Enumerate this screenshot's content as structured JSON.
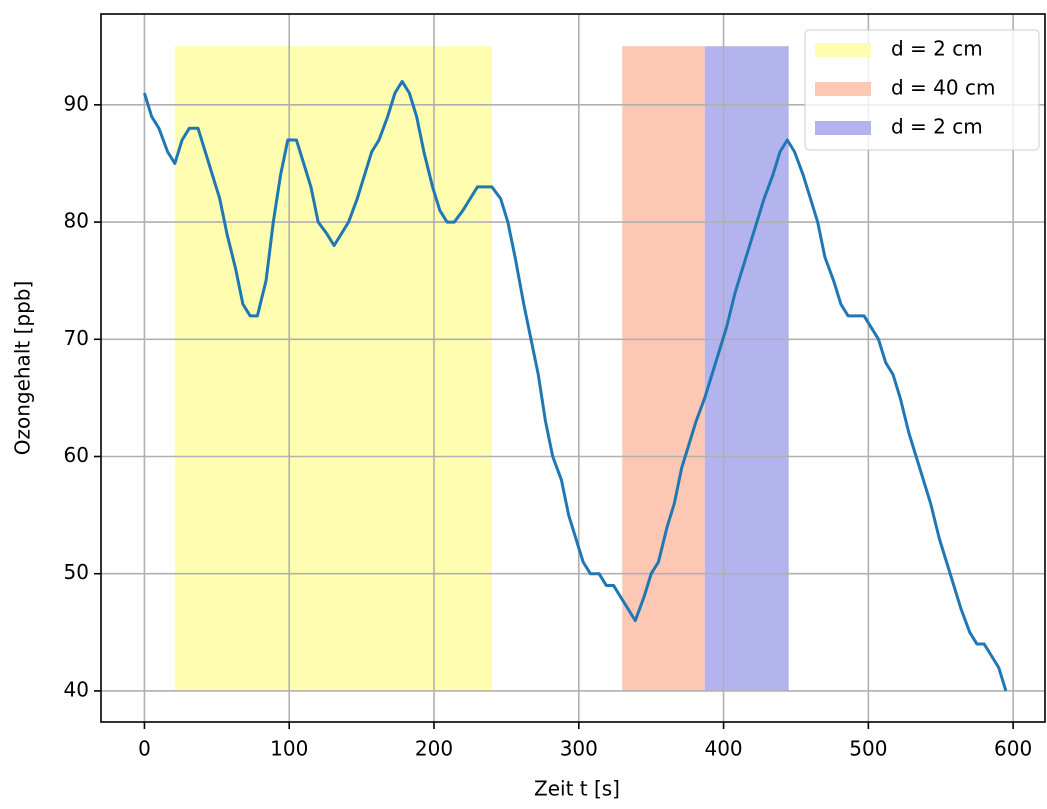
{
  "chart_data": {
    "type": "line",
    "xlabel": "Zeit t [s]",
    "ylabel": "Ozongehalt [ppb]",
    "x": [
      0,
      5,
      10,
      16,
      21,
      26,
      31,
      37,
      42,
      47,
      52,
      57,
      63,
      68,
      73,
      78,
      84,
      89,
      94,
      99,
      105,
      110,
      115,
      120,
      126,
      131,
      136,
      141,
      147,
      152,
      157,
      162,
      168,
      173,
      178,
      183,
      188,
      193,
      199,
      204,
      209,
      214,
      220,
      225,
      230,
      235,
      240,
      246,
      251,
      256,
      262,
      267,
      272,
      277,
      282,
      288,
      293,
      298,
      303,
      308,
      314,
      319,
      324,
      329,
      334,
      339,
      345,
      350,
      355,
      361,
      366,
      371,
      376,
      381,
      387,
      392,
      397,
      402,
      408,
      413,
      418,
      423,
      428,
      434,
      439,
      444,
      449,
      455,
      460,
      465,
      470,
      476,
      481,
      486,
      491,
      497,
      502,
      507,
      512,
      517,
      522,
      528,
      533,
      538,
      543,
      549,
      554,
      559,
      564,
      570,
      575,
      580,
      585,
      590,
      595
    ],
    "series": [
      {
        "color": "#1f77b4",
        "values": [
          91,
          89,
          88,
          86,
          85,
          87,
          88,
          88,
          86,
          84,
          82,
          79,
          76,
          73,
          72,
          72,
          75,
          80,
          84,
          87,
          87,
          85,
          83,
          80,
          79,
          78,
          79,
          80,
          82,
          84,
          86,
          87,
          89,
          91,
          92,
          91,
          89,
          86,
          83,
          81,
          80,
          80,
          81,
          82,
          83,
          83,
          83,
          82,
          80,
          77,
          73,
          70,
          67,
          63,
          60,
          58,
          55,
          53,
          51,
          50,
          50,
          49,
          49,
          48,
          47,
          46,
          48,
          50,
          51,
          54,
          56,
          59,
          61,
          63,
          65,
          67,
          69,
          71,
          74,
          76,
          78,
          80,
          82,
          84,
          86,
          87,
          86,
          84,
          82,
          80,
          77,
          75,
          73,
          72,
          72,
          72,
          71,
          70,
          68,
          67,
          65,
          62,
          60,
          58,
          56,
          53,
          51,
          49,
          47,
          45,
          44,
          44,
          43,
          42,
          40
        ]
      }
    ],
    "spans": [
      {
        "name": "d = 2 cm",
        "color": "#fffdb0",
        "x": [
          21,
          240
        ],
        "y": [
          40,
          95
        ]
      },
      {
        "name": "d = 40 cm",
        "color": "#fcc8b4",
        "x": [
          330,
          387
        ],
        "y": [
          40,
          95
        ]
      },
      {
        "name": "d = 2 cm",
        "color": "#b3b3ee",
        "x": [
          387,
          445
        ],
        "y": [
          40,
          95
        ]
      }
    ],
    "xlim": [
      -30,
      622
    ],
    "ylim": [
      37.35,
      97.75
    ],
    "xticks": [
      0,
      100,
      200,
      300,
      400,
      500,
      600
    ],
    "yticks": [
      40,
      50,
      60,
      70,
      80,
      90
    ],
    "grid": true,
    "legend": "upper right"
  }
}
